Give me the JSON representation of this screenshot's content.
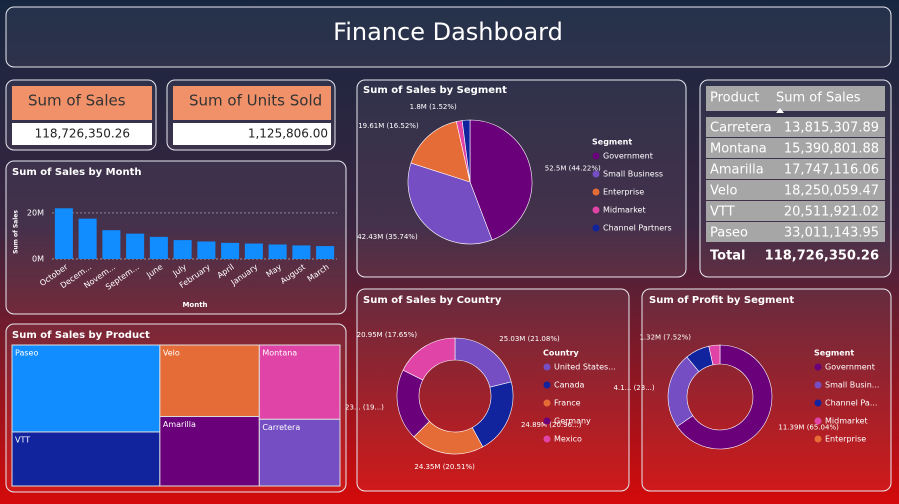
{
  "title": "Finance Dashboard",
  "cards": [
    {
      "label": "Sum of Sales",
      "value": "118,726,350.26"
    },
    {
      "label": "Sum of Units Sold",
      "value": "1,125,806.00"
    }
  ],
  "table": {
    "columns": [
      "Product",
      "Sum of Sales"
    ],
    "rows": [
      [
        "Carretera",
        "13,815,307.89"
      ],
      [
        "Montana",
        "15,390,801.88"
      ],
      [
        "Amarilla",
        "17,747,116.06"
      ],
      [
        "Velo",
        "18,250,059.47"
      ],
      [
        "VTT",
        "20,511,921.02"
      ],
      [
        "Paseo",
        "33,011,143.95"
      ]
    ],
    "total": [
      "Total",
      "118,726,350.26"
    ]
  },
  "chart_data": [
    {
      "type": "bar",
      "title": "Sum of Sales by Month",
      "x_label": "Month",
      "y_label": "Sum of Sales",
      "categories": [
        "October",
        "Decem...",
        "Novem...",
        "Septem...",
        "June",
        "July",
        "February",
        "April",
        "January",
        "May",
        "August",
        "March"
      ],
      "values": [
        22,
        17.5,
        12.5,
        11,
        9.6,
        8.2,
        7.6,
        7,
        6.7,
        6.3,
        5.9,
        5.6
      ],
      "color": "#118dff",
      "ylim": [
        0,
        23
      ],
      "yticks": [
        {
          "value": 0,
          "label": "0M"
        },
        {
          "value": 20,
          "label": "20M"
        }
      ],
      "grid": true
    },
    {
      "type": "pie",
      "title": "Sum of Sales by Segment",
      "legend_title": "Segment",
      "categories": [
        "Government",
        "Small Business",
        "Enterprise",
        "Midmarket",
        "Channel Partners"
      ],
      "values": [
        52.5,
        42.43,
        19.61,
        1.8,
        2.4
      ],
      "value_labels": [
        "52.5M (44.22%)",
        "42.43M (35.74%)",
        "19.61M (16.52%)",
        "1.8M (1.52%)",
        null
      ],
      "colors": [
        "#6b007b",
        "#744ec2",
        "#e66c37",
        "#e044a7",
        "#12239e"
      ]
    },
    {
      "type": "treemap",
      "title": "Sum of Sales by Product",
      "categories": [
        "Paseo",
        "VTT",
        "Velo",
        "Amarilla",
        "Montana",
        "Carretera"
      ],
      "values": [
        33011143.95,
        20511921.02,
        18250059.47,
        17747116.06,
        15390801.88,
        13815307.89
      ],
      "colors": [
        "#118dff",
        "#12239e",
        "#e66c37",
        "#6b007b",
        "#e044a7",
        "#744ec2"
      ]
    },
    {
      "type": "donut",
      "title": "Sum of Sales by Country",
      "legend_title": "Country",
      "categories": [
        "United States...",
        "Canada",
        "France",
        "Germany",
        "Mexico"
      ],
      "values": [
        25.03,
        24.89,
        24.35,
        23.51,
        20.95
      ],
      "value_labels": [
        "25.03M (21.08%)",
        "24.89M (20.96...)",
        "24.35M (20.51%)",
        "23... (19...)",
        "20.95M (17.65%)"
      ],
      "colors": [
        "#744ec2",
        "#12239e",
        "#e66c37",
        "#6b007b",
        "#e044a7"
      ]
    },
    {
      "type": "donut",
      "title": "Sum of Profit by Segment",
      "legend_title": "Segment",
      "categories": [
        "Government",
        "Small Busin...",
        "Channel Pa...",
        "Midmarket",
        "Enterprise"
      ],
      "values": [
        11.39,
        4.1,
        1.32,
        0.6,
        0
      ],
      "value_labels": [
        "11.39M (65.04%)",
        "4.1... (23...)",
        "1.32M (7.52%)",
        null,
        null
      ],
      "colors": [
        "#6b007b",
        "#744ec2",
        "#12239e",
        "#e044a7",
        "#e66c37"
      ]
    }
  ]
}
